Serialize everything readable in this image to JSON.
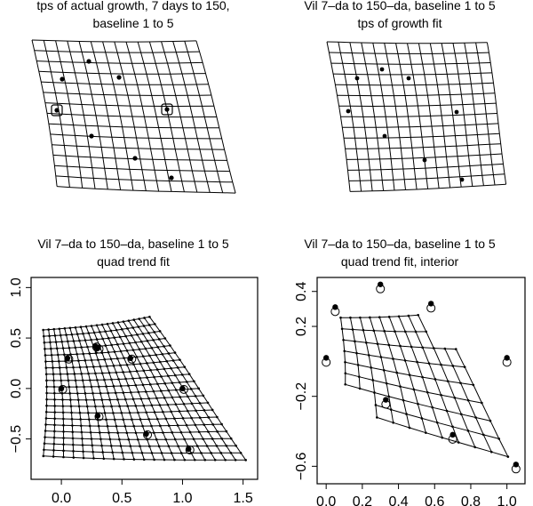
{
  "panels": [
    {
      "title1": "tps of actual growth, 7 days to 150,",
      "title2": "baseline 1  to  5"
    },
    {
      "title1": "Vil 7–da to 150–da, baseline 1  to  5",
      "title2": "tps of growth fit"
    },
    {
      "title1": "Vil 7–da to 150–da, baseline 1  to  5",
      "title2": "quad trend fit",
      "xticks": [
        "0.0",
        "0.5",
        "1.0",
        "1.5"
      ],
      "yticks": [
        "−0.5",
        "0.0",
        "0.5",
        "1.0"
      ]
    },
    {
      "title1": "Vil 7–da to 150–da, baseline 1  to  5",
      "title2": "quad trend fit, interior",
      "xticks": [
        "0.0",
        "0.2",
        "0.4",
        "0.6",
        "0.8",
        "1.0"
      ],
      "yticks": [
        "−0.6",
        "−0.2",
        "0.2",
        "0.4"
      ]
    }
  ],
  "chart_data": [
    {
      "type": "scatter",
      "name": "panel3_landmarks",
      "x": [
        0.0,
        0.05,
        0.28,
        0.3,
        0.57,
        0.7,
        1.0,
        1.05,
        0.3
      ],
      "y": [
        0.0,
        0.3,
        0.42,
        -0.27,
        0.3,
        -0.45,
        0.0,
        -0.6,
        0.4
      ],
      "xlim": [
        -0.25,
        1.62
      ],
      "ylim": [
        -0.9,
        1.1
      ]
    },
    {
      "type": "scatter",
      "name": "panel4_landmarks",
      "x": [
        0.0,
        0.05,
        0.3,
        0.33,
        0.58,
        0.7,
        1.0,
        1.05
      ],
      "y": [
        0.0,
        0.29,
        0.42,
        -0.24,
        0.31,
        -0.44,
        0.0,
        -0.61
      ],
      "xlim": [
        -0.05,
        1.1
      ],
      "ylim": [
        -0.7,
        0.48
      ]
    }
  ]
}
